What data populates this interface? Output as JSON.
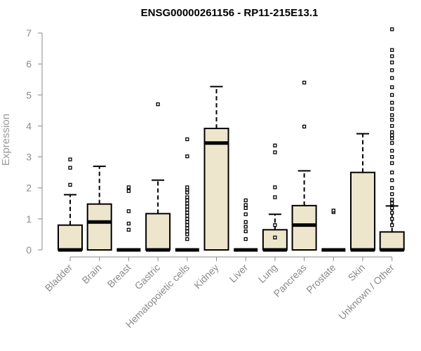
{
  "chart_data": {
    "type": "boxplot",
    "title": "ENSG00000261156 - RP11-215E13.1",
    "ylabel": "Expression",
    "xlabel": "",
    "ylim": [
      0,
      7
    ],
    "yticks": [
      0,
      1,
      2,
      3,
      4,
      5,
      6,
      7
    ],
    "grid": false,
    "box_fill": "#ede6cc",
    "outline_color": "#000000",
    "categories": [
      "Bladder",
      "Brain",
      "Breast",
      "Gastric",
      "Hematopoietic cells",
      "Kidney",
      "Liver",
      "Lung",
      "Pancreas",
      "Prostate",
      "Skin",
      "Unknown / Other"
    ],
    "boxes": [
      {
        "q1": 0,
        "median": 0,
        "q3": 0.8,
        "whisker_low": 0,
        "whisker_high": 1.78,
        "outliers": [
          2.1,
          2.65,
          2.92
        ]
      },
      {
        "q1": 0,
        "median": 0.9,
        "q3": 1.48,
        "whisker_low": 0,
        "whisker_high": 2.7,
        "outliers": []
      },
      {
        "q1": 0,
        "median": 0,
        "q3": 0,
        "whisker_low": 0,
        "whisker_high": 0,
        "outliers": [
          0.65,
          0.85,
          1.25,
          1.9,
          2.02
        ]
      },
      {
        "q1": 0,
        "median": 0,
        "q3": 1.17,
        "whisker_low": 0,
        "whisker_high": 2.25,
        "outliers": [
          4.7
        ]
      },
      {
        "q1": 0,
        "median": 0,
        "q3": 0,
        "whisker_low": 0,
        "whisker_high": 0,
        "outliers": [
          0.35,
          0.5,
          0.6,
          0.7,
          0.8,
          0.9,
          1.0,
          1.1,
          1.2,
          1.3,
          1.4,
          1.5,
          1.6,
          1.7,
          1.85,
          1.95,
          2.02,
          3.02,
          3.57
        ]
      },
      {
        "q1": 0,
        "median": 3.45,
        "q3": 3.92,
        "whisker_low": 0,
        "whisker_high": 5.27,
        "outliers": []
      },
      {
        "q1": 0,
        "median": 0,
        "q3": 0,
        "whisker_low": 0,
        "whisker_high": 0,
        "outliers": [
          0.35,
          0.6,
          0.75,
          0.9,
          1.15,
          1.35,
          1.45,
          1.6
        ]
      },
      {
        "q1": 0,
        "median": 0,
        "q3": 0.65,
        "whisker_low": 0,
        "whisker_high": 1.15,
        "outliers": [
          0.4,
          0.8,
          1.7,
          2.02,
          3.15,
          3.37
        ]
      },
      {
        "q1": 0,
        "median": 0.8,
        "q3": 1.43,
        "whisker_low": 0,
        "whisker_high": 2.55,
        "outliers": [
          3.98,
          5.4
        ]
      },
      {
        "q1": 0,
        "median": 0,
        "q3": 0,
        "whisker_low": 0,
        "whisker_high": 0,
        "outliers": [
          1.22,
          1.27
        ]
      },
      {
        "q1": 0,
        "median": 0,
        "q3": 2.5,
        "whisker_low": 0,
        "whisker_high": 3.75,
        "outliers": []
      },
      {
        "q1": 0,
        "median": 0,
        "q3": 0.58,
        "whisker_low": 0,
        "whisker_high": 1.42,
        "outliers": [
          0.8,
          1.0,
          1.2,
          1.35,
          1.5,
          1.62,
          1.8,
          2.0,
          2.25,
          2.5,
          2.8,
          3.0,
          3.2,
          3.45,
          3.6,
          3.7,
          3.8,
          4.0,
          4.2,
          4.35,
          4.55,
          4.75,
          5.0,
          5.25,
          5.55,
          5.8,
          6.05,
          6.25,
          6.45,
          7.12
        ]
      }
    ]
  }
}
